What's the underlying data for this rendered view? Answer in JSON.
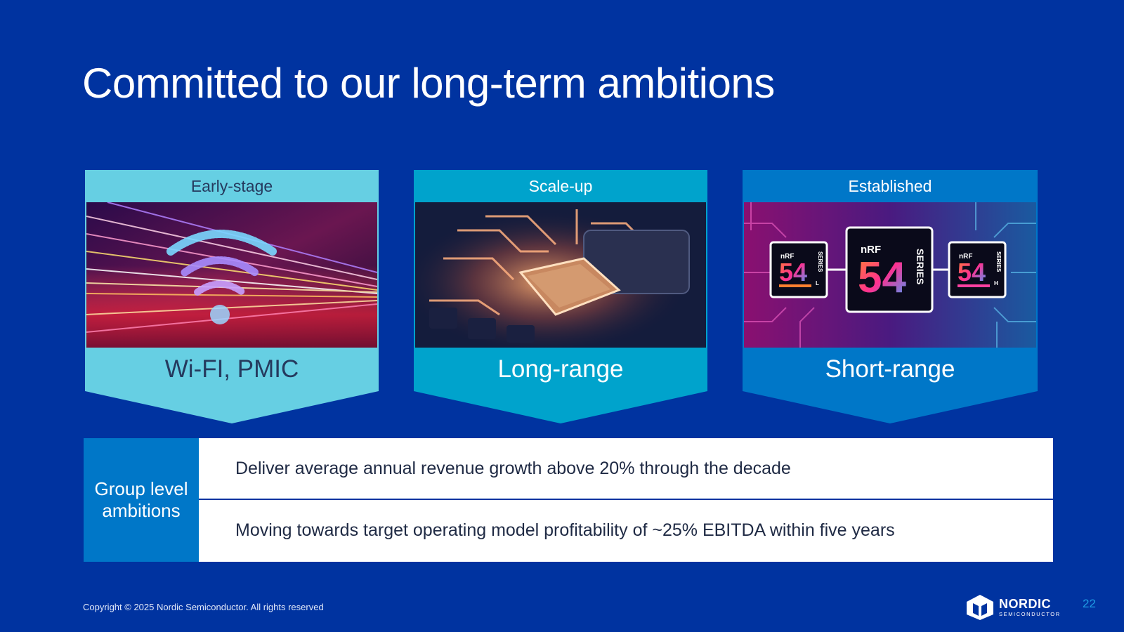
{
  "slide": {
    "title": "Committed to our long-term ambitions",
    "page_number": "22"
  },
  "colors": {
    "background": "#0033a0",
    "early_stage": "#66cfe3",
    "scale_up": "#00a3cc",
    "established": "#0077c8",
    "ambition_side": "#0077c8"
  },
  "cards": [
    {
      "header": "Early-stage",
      "label": "Wi-FI, PMIC",
      "image": "wifi-light-streaks-image"
    },
    {
      "header": "Scale-up",
      "label": "Long-range",
      "image": "circuit-chip-image"
    },
    {
      "header": "Established",
      "label": "Short-range",
      "image": "nrf54-series-chips-image",
      "chips": [
        {
          "brand": "nRF",
          "number": "54",
          "series": "SERIES",
          "variant": "L"
        },
        {
          "brand": "nRF",
          "number": "54",
          "series": "SERIES",
          "variant": ""
        },
        {
          "brand": "nRF",
          "number": "54",
          "series": "SERIES",
          "variant": "H"
        }
      ]
    }
  ],
  "ambitions": {
    "title": "Group level ambitions",
    "items": [
      "Deliver average annual revenue growth above 20% through the decade",
      "Moving towards target operating model profitability of ~25% EBITDA within five years"
    ]
  },
  "footer": {
    "copyright": "Copyright © 2025 Nordic Semiconductor. All rights reserved",
    "logo_word": "NORDIC",
    "logo_sub": "SEMICONDUCTOR"
  }
}
